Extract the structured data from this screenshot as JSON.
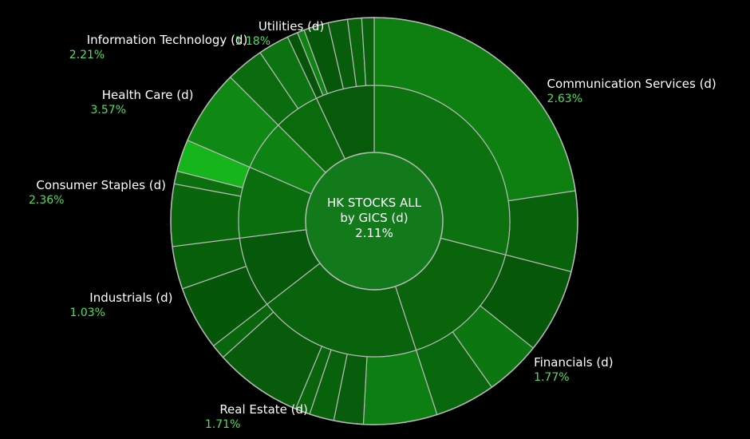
{
  "chart_data": {
    "type": "sunburst",
    "center": {
      "line1": "HK STOCKS ALL",
      "line2": "by GICS (d)",
      "value": "2.11%"
    },
    "colors": {
      "label_text": "#ffffff",
      "value_text": "#4fe05a",
      "background": "#000000",
      "separator": "#b8b8b8"
    },
    "sectors": [
      {
        "name": "Communication Services (d)",
        "value": "2.63%",
        "pct": 2.63,
        "share": 29.0,
        "children": [
          {
            "share": 78.0,
            "pct": 3.1
          },
          {
            "share": 22.0,
            "pct": 1.4
          }
        ]
      },
      {
        "name": "Financials (d)",
        "value": "1.77%",
        "pct": 1.77,
        "share": 16.0,
        "children": [
          {
            "share": 42.0,
            "pct": 0.9
          },
          {
            "share": 28.0,
            "pct": 2.6
          },
          {
            "share": 30.0,
            "pct": 1.8
          }
        ]
      },
      {
        "name": "Real Estate (d)",
        "value": "1.71%",
        "pct": 1.71,
        "share": 19.5,
        "children": [
          {
            "share": 30.0,
            "pct": 3.0
          },
          {
            "share": 12.0,
            "pct": 1.2
          },
          {
            "share": 10.0,
            "pct": 1.5
          },
          {
            "share": 6.0,
            "pct": 1.6
          },
          {
            "share": 36.0,
            "pct": 1.1
          },
          {
            "share": 6.0,
            "pct": 1.7
          }
        ]
      },
      {
        "name": "Industrials (d)",
        "value": "1.03%",
        "pct": 1.03,
        "share": 8.5,
        "children": [
          {
            "share": 60.0,
            "pct": 0.8
          },
          {
            "share": 40.0,
            "pct": 1.3
          }
        ]
      },
      {
        "name": "Consumer Staples (d)",
        "value": "2.36%",
        "pct": 2.36,
        "share": 8.5,
        "children": [
          {
            "share": 58.0,
            "pct": 1.7
          },
          {
            "share": 12.0,
            "pct": 2.2
          },
          {
            "share": 30.0,
            "pct": 6.0
          }
        ]
      },
      {
        "name": "Health Care (d)",
        "value": "3.57%",
        "pct": 3.57,
        "share": 6.0,
        "children": [
          {
            "share": 100.0,
            "pct": 3.6
          }
        ]
      },
      {
        "name": "Information Technology (d)",
        "value": "2.21%",
        "pct": 2.21,
        "share": 5.5,
        "children": [
          {
            "share": 55.0,
            "pct": 2.0
          },
          {
            "share": 45.0,
            "pct": 2.4
          }
        ]
      },
      {
        "name": "Utilities (d)",
        "value": "1.18%",
        "pct": 1.18,
        "share": 7.0,
        "children": [
          {
            "share": 12.0,
            "pct": 0.7
          },
          {
            "share": 8.0,
            "pct": 3.3
          },
          {
            "share": 28.0,
            "pct": 0.9
          },
          {
            "share": 22.0,
            "pct": 1.2
          },
          {
            "share": 16.0,
            "pct": 1.6
          },
          {
            "share": 14.0,
            "pct": 1.5
          }
        ]
      }
    ]
  }
}
